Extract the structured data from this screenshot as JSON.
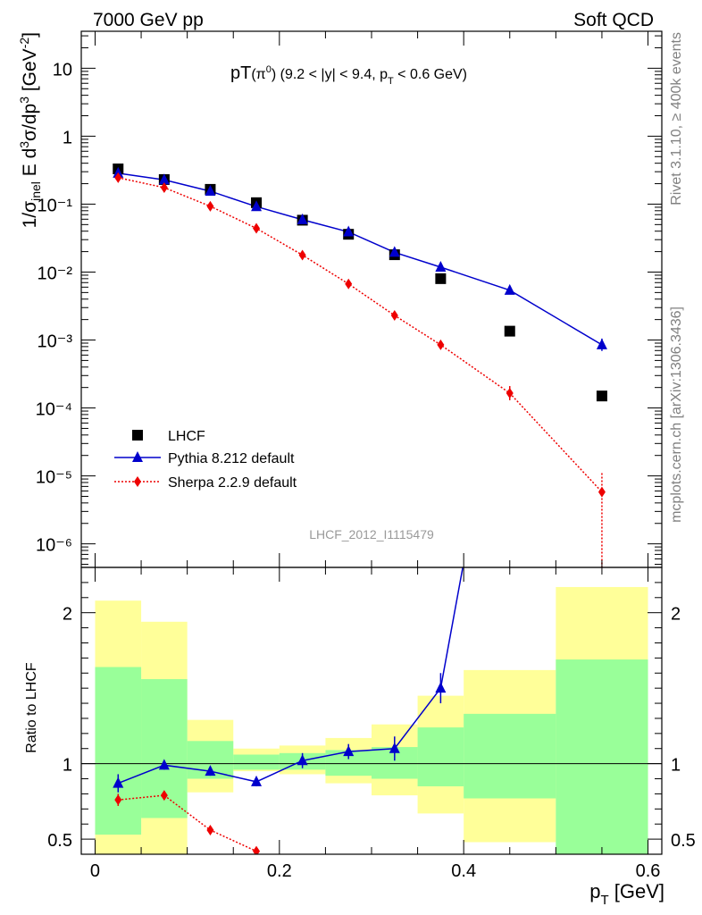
{
  "header": {
    "left": "7000 GeV pp",
    "right": "Soft QCD",
    "side_top": "Rivet 3.1.10, ≥ 400k events",
    "side_bottom": "mcplots.cern.ch [arXiv:1306.3436]"
  },
  "colors": {
    "data": "#000000",
    "pythia": "#0000cc",
    "sherpa": "#ee0000",
    "band_inner": "#99ff99",
    "band_outer": "#ffff99"
  },
  "chart_data": {
    "type": "scatter",
    "analysis_label": "LHCF_2012_I1115479",
    "x_label": "p_T [GeV]",
    "xlim": [
      -0.015,
      0.615
    ],
    "x_ticks": [
      0,
      0.2,
      0.4,
      0.6
    ],
    "x_tick_labels": [
      "0",
      "0.2",
      "0.4",
      "0.6"
    ],
    "bin_edges": [
      0,
      0.05,
      0.1,
      0.15,
      0.2,
      0.25,
      0.3,
      0.35,
      0.4,
      0.5,
      0.6
    ],
    "bin_centers": [
      0.025,
      0.075,
      0.125,
      0.175,
      0.225,
      0.275,
      0.325,
      0.375,
      0.45,
      0.55
    ],
    "main": {
      "title_prefix": "pT",
      "title_particle": "(π",
      "title_particle_sup": "0",
      "title_rest1": ") (9.2 < |y| < 9.4, p",
      "title_sub": "T",
      "title_rest2": " < 0.6 GeV)",
      "y_label": "1/σ_inel E d³σ/dp³ [GeV⁻²]",
      "y_scale": "log",
      "ylim": [
        4.5e-07,
        35
      ],
      "y_tick_labels": [
        "10⁻⁶",
        "10⁻⁵",
        "10⁻⁴",
        "10⁻³",
        "10⁻²",
        "10⁻¹",
        "1",
        "10"
      ],
      "legend_position": "bottom-left",
      "series": [
        {
          "name": "LHCF",
          "marker": "square",
          "style": "points",
          "values": [
            0.33,
            0.23,
            0.165,
            0.105,
            0.058,
            0.036,
            0.018,
            0.008,
            0.00135,
            0.00015
          ]
        },
        {
          "name": "Pythia 8.212 default",
          "marker": "triangle",
          "style": "solid",
          "values": [
            0.285,
            0.228,
            0.155,
            0.092,
            0.059,
            0.039,
            0.0195,
            0.0118,
            0.0054,
            0.00085
          ]
        },
        {
          "name": "Sherpa 2.2.9 default",
          "marker": "diamond",
          "style": "dotted",
          "values": [
            0.245,
            0.175,
            0.093,
            0.044,
            0.0178,
            0.0067,
            0.0023,
            0.00085,
            0.000165,
            5.8e-06
          ]
        }
      ]
    },
    "ratio": {
      "y_label": "Ratio to LHCF",
      "ylim": [
        0.4,
        2.3
      ],
      "y_tick_labels": [
        "0.5",
        "1",
        "2"
      ],
      "band_inner": [
        [
          0.53,
          1.64
        ],
        [
          0.64,
          1.56
        ],
        [
          0.9,
          1.15
        ],
        [
          0.96,
          1.06
        ],
        [
          0.96,
          1.07
        ],
        [
          0.92,
          1.09
        ],
        [
          0.9,
          1.11
        ],
        [
          0.85,
          1.24
        ],
        [
          0.77,
          1.33
        ],
        [
          0.38,
          1.69
        ]
      ],
      "band_outer": [
        [
          0.4,
          2.08
        ],
        [
          0.4,
          1.94
        ],
        [
          0.81,
          1.29
        ],
        [
          0.95,
          1.1
        ],
        [
          0.93,
          1.12
        ],
        [
          0.87,
          1.17
        ],
        [
          0.79,
          1.26
        ],
        [
          0.67,
          1.45
        ],
        [
          0.48,
          1.62
        ],
        [
          0.38,
          2.17
        ]
      ],
      "pythia": [
        0.87,
        0.99,
        0.95,
        0.88,
        1.02,
        1.08,
        1.1,
        1.5,
        4.0,
        5.7
      ],
      "sherpa": [
        0.76,
        0.79,
        0.56,
        0.42
      ]
    }
  }
}
